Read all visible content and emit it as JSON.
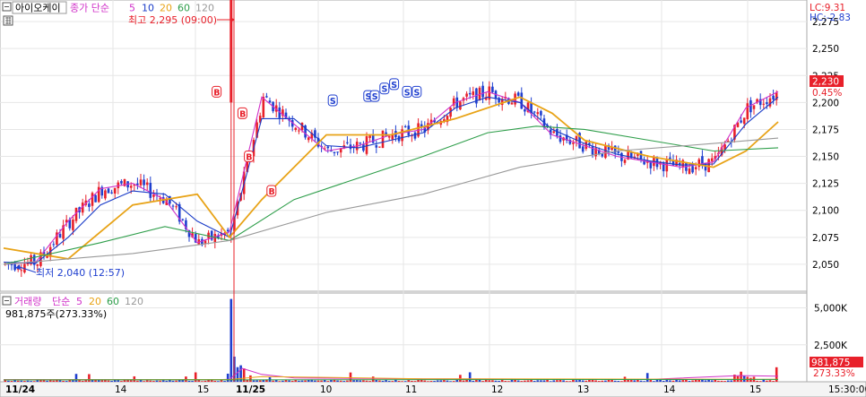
{
  "header": {
    "stock_name": "아이오케이",
    "ma_label": "종가 단순",
    "ma_periods": [
      "5",
      "10",
      "20",
      "60",
      "120"
    ],
    "high_note": "최고 2,295 (09:00)",
    "low_note": "최저 2,040 (12:57)",
    "lc": "LC:9.31",
    "hc": "HC:-2.83",
    "current_price": "2,230",
    "current_pct": "0.45%"
  },
  "volume_header": {
    "label": "거래량",
    "ma_label": "단순",
    "ma_periods": [
      "5",
      "20",
      "60",
      "120"
    ],
    "current": "981,875주(273.33%)",
    "current_volume": "981,875",
    "current_pct": "273.33%"
  },
  "time_axis": {
    "labels": [
      "11/24",
      "14",
      "15",
      "11/25",
      "10",
      "11",
      "12",
      "13",
      "14",
      "15"
    ],
    "right_label": "15:30:00"
  },
  "markers": {
    "buy": "B",
    "sell": "S"
  },
  "colors": {
    "up": "#e8202a",
    "down": "#1f3fcf",
    "ma5": "#d030c8",
    "ma10": "#1a3cc8",
    "ma20": "#e8a317",
    "ma60": "#2e9e4a",
    "ma120": "#999999",
    "crosshair": "#e8202a"
  },
  "chart_data": [
    {
      "type": "line",
      "title": "아이오케이",
      "ylabel": "",
      "ylim": [
        2025,
        2295
      ],
      "y_ticks": [
        "2,275",
        "2,250",
        "2,225",
        "2,200",
        "2,175",
        "2,150",
        "2,125",
        "2,100",
        "2,075",
        "2,050"
      ],
      "y_tick_values": [
        2275,
        2250,
        2225,
        2200,
        2175,
        2150,
        2125,
        2100,
        2075,
        2050
      ],
      "series": [
        {
          "name": "5",
          "x": [
            0,
            10,
            20,
            30,
            40,
            50,
            60,
            70,
            80,
            90,
            100,
            110,
            120,
            130,
            140,
            150,
            160,
            170,
            180,
            190,
            200,
            210,
            220,
            230,
            240
          ],
          "values": [
            2050,
            2052,
            2090,
            2120,
            2125,
            2110,
            2070,
            2080,
            2205,
            2180,
            2155,
            2160,
            2170,
            2175,
            2200,
            2210,
            2200,
            2170,
            2160,
            2150,
            2145,
            2140,
            2145,
            2195,
            2210
          ]
        },
        {
          "name": "10",
          "x": [
            0,
            10,
            20,
            30,
            40,
            50,
            60,
            70,
            80,
            90,
            100,
            110,
            120,
            130,
            140,
            150,
            160,
            170,
            180,
            190,
            200,
            210,
            220,
            230,
            240
          ],
          "values": [
            2052,
            2051,
            2075,
            2105,
            2118,
            2115,
            2090,
            2075,
            2185,
            2185,
            2160,
            2158,
            2165,
            2172,
            2195,
            2205,
            2200,
            2175,
            2162,
            2152,
            2146,
            2142,
            2143,
            2180,
            2205
          ]
        },
        {
          "name": "20",
          "x": [
            0,
            20,
            40,
            60,
            70,
            80,
            90,
            100,
            120,
            140,
            160,
            170,
            180,
            200,
            220,
            230,
            240
          ],
          "values": [
            2065,
            2055,
            2105,
            2115,
            2075,
            2110,
            2140,
            2170,
            2170,
            2185,
            2205,
            2190,
            2165,
            2150,
            2140,
            2155,
            2182
          ]
        },
        {
          "name": "60",
          "x": [
            0,
            30,
            50,
            70,
            90,
            110,
            130,
            150,
            165,
            180,
            200,
            220,
            240
          ],
          "values": [
            2050,
            2070,
            2085,
            2072,
            2110,
            2130,
            2150,
            2172,
            2178,
            2175,
            2165,
            2155,
            2158
          ]
        },
        {
          "name": "120",
          "x": [
            0,
            40,
            70,
            100,
            130,
            160,
            190,
            220,
            240
          ],
          "values": [
            2050,
            2060,
            2072,
            2098,
            2115,
            2140,
            2155,
            2162,
            2167
          ]
        }
      ],
      "annotations": [
        {
          "text": "최고 2,295 (09:00)",
          "x": 70,
          "y": 2295
        },
        {
          "text": "최저 2,040 (12:57)",
          "x": 5,
          "y": 2040
        }
      ]
    },
    {
      "type": "bar",
      "title": "거래량",
      "ylim": [
        0,
        6000
      ],
      "y_ticks": [
        "5,000K",
        "2,500K"
      ],
      "y_tick_values": [
        5000,
        2500
      ],
      "unit": "K"
    }
  ]
}
